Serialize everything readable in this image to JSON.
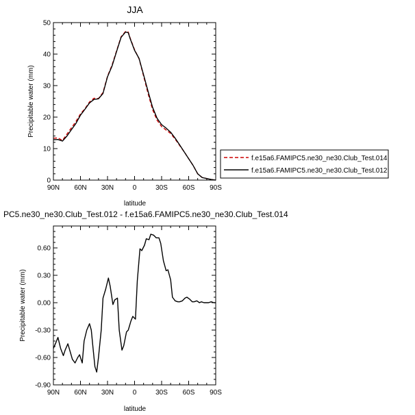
{
  "chart_data": [
    {
      "type": "line",
      "title": "JJA",
      "xlabel": "latitude",
      "ylabel": "Precipitable water (mm)",
      "xlim": [
        90,
        -90
      ],
      "ylim": [
        0,
        50
      ],
      "x_ticks": [
        90,
        60,
        30,
        0,
        -30,
        -60,
        -90
      ],
      "x_tick_labels": [
        "90N",
        "60N",
        "30N",
        "0",
        "30S",
        "60S",
        "90S"
      ],
      "y_ticks": [
        0,
        10,
        20,
        30,
        40,
        50
      ],
      "y_tick_labels": [
        "0",
        "10",
        "20",
        "30",
        "40",
        "50"
      ],
      "legend_placement": "right",
      "series": [
        {
          "name": "f.e15a6.FAMIPC5.ne30_ne30.Club_Test.014",
          "color": "#cc0000",
          "dash": "dashed",
          "x": [
            90,
            85,
            80,
            75,
            70,
            65,
            60,
            55,
            50,
            45,
            40,
            35,
            30,
            25,
            20,
            15,
            10,
            7,
            5,
            0,
            -5,
            -10,
            -15,
            -20,
            -25,
            -30,
            -35,
            -40,
            -45,
            -50,
            -55,
            -60,
            -65,
            -70,
            -75,
            -80,
            -85,
            -90
          ],
          "y": [
            13.3,
            13.4,
            12.6,
            14.6,
            16.6,
            18.6,
            21.0,
            22.7,
            24.8,
            26.0,
            25.9,
            27.8,
            33.0,
            36.5,
            41.0,
            45.5,
            47.2,
            47.0,
            45.2,
            41.4,
            38.5,
            33.0,
            27.4,
            22.4,
            19.0,
            17.0,
            15.9,
            14.8,
            13.0,
            11.0,
            9.0,
            6.8,
            4.6,
            2.0,
            0.8,
            0.5,
            0.2,
            0.0
          ]
        },
        {
          "name": "f.e15a6.FAMIPC5.ne30_ne30.Club_Test.012",
          "color": "#000000",
          "dash": "solid",
          "x": [
            90,
            85,
            80,
            75,
            70,
            65,
            60,
            55,
            50,
            45,
            40,
            35,
            30,
            25,
            20,
            15,
            10,
            7,
            5,
            0,
            -5,
            -10,
            -15,
            -20,
            -25,
            -30,
            -35,
            -40,
            -45,
            -50,
            -55,
            -60,
            -65,
            -70,
            -75,
            -80,
            -85,
            -90
          ],
          "y": [
            12.8,
            12.9,
            12.4,
            14.0,
            16.0,
            18.0,
            20.6,
            22.5,
            24.5,
            25.6,
            25.8,
            27.5,
            32.8,
            36.2,
            40.8,
            45.3,
            47.0,
            46.8,
            45.0,
            41.2,
            38.6,
            33.4,
            28.1,
            23.1,
            19.6,
            17.6,
            16.5,
            15.2,
            13.3,
            11.2,
            9.0,
            6.8,
            4.6,
            2.0,
            0.8,
            0.5,
            0.2,
            0.0
          ]
        }
      ]
    },
    {
      "type": "line",
      "title": "PC5.ne30_ne30.Club_Test.012 - f.e15a6.FAMIPC5.ne30_ne30.Club_Test.014",
      "xlabel": "latitude",
      "ylabel": "Precipitable water (mm)",
      "xlim": [
        90,
        -90
      ],
      "ylim": [
        -0.9,
        0.84
      ],
      "x_ticks": [
        90,
        60,
        30,
        0,
        -30,
        -60,
        -90
      ],
      "x_tick_labels": [
        "90N",
        "60N",
        "30N",
        "0",
        "30S",
        "60S",
        "90S"
      ],
      "y_ticks": [
        -0.9,
        -0.6,
        -0.3,
        0.0,
        0.3,
        0.6
      ],
      "y_tick_labels": [
        "-0.90",
        "-0.60",
        "-0.30",
        "0.00",
        "0.30",
        "0.60"
      ],
      "series": [
        {
          "color": "#000000",
          "dash": "solid",
          "x": [
            90,
            87,
            85,
            82,
            79,
            77,
            74,
            71,
            69,
            66,
            63,
            61,
            58,
            56,
            53,
            50,
            48,
            46,
            44,
            42,
            40,
            37,
            35,
            32,
            29,
            27,
            24,
            22,
            19,
            17,
            14,
            12,
            9,
            7,
            4,
            2,
            -1,
            -3,
            -6,
            -8,
            -11,
            -13,
            -16,
            -18,
            -21,
            -24,
            -27,
            -29,
            -32,
            -35,
            -37,
            -40,
            -42,
            -45,
            -48,
            -50,
            -53,
            -56,
            -58,
            -61,
            -64,
            -66,
            -69,
            -72,
            -74,
            -77,
            -80,
            -82,
            -85,
            -88,
            -90
          ],
          "y": [
            -0.5,
            -0.43,
            -0.38,
            -0.5,
            -0.58,
            -0.52,
            -0.45,
            -0.55,
            -0.62,
            -0.66,
            -0.6,
            -0.57,
            -0.66,
            -0.42,
            -0.3,
            -0.23,
            -0.3,
            -0.5,
            -0.7,
            -0.76,
            -0.6,
            -0.3,
            0.05,
            0.15,
            0.27,
            0.18,
            -0.02,
            0.03,
            0.05,
            -0.3,
            -0.52,
            -0.47,
            -0.32,
            -0.3,
            -0.2,
            -0.15,
            -0.18,
            0.24,
            0.59,
            0.57,
            0.63,
            0.7,
            0.69,
            0.75,
            0.74,
            0.71,
            0.71,
            0.65,
            0.46,
            0.35,
            0.36,
            0.25,
            0.06,
            0.02,
            0.01,
            0.01,
            0.02,
            0.05,
            0.06,
            0.04,
            0.01,
            0.01,
            0.02,
            0.0,
            0.01,
            0.0,
            0.0,
            0.0,
            0.01,
            0.0,
            0.0
          ]
        }
      ]
    }
  ]
}
